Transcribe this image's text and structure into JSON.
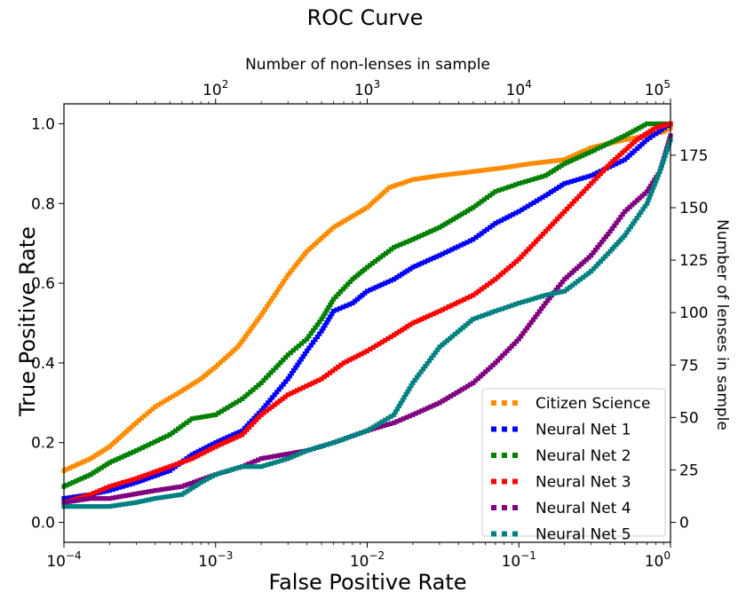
{
  "chart_data": {
    "type": "scatter",
    "title": "ROC Curve",
    "xlabel": "False Positive Rate",
    "ylabel": "True Positive Rate",
    "x2label": "Number of non-lenses in sample",
    "y2label": "Number of lenses in sample",
    "xscale": "log",
    "xlim": [
      0.0001,
      1
    ],
    "ylim": [
      -0.05,
      1.05
    ],
    "x_ticks": [
      {
        "value": 0.0001,
        "base": "10",
        "exp": "−4"
      },
      {
        "value": 0.001,
        "base": "10",
        "exp": "−3"
      },
      {
        "value": 0.01,
        "base": "10",
        "exp": "−2"
      },
      {
        "value": 0.1,
        "base": "10",
        "exp": "−1"
      },
      {
        "value": 1,
        "base": "10",
        "exp": "0"
      }
    ],
    "y_ticks": [
      "0.0",
      "0.2",
      "0.4",
      "0.6",
      "0.8",
      "1.0"
    ],
    "x2_scale_max": 100000,
    "x2_ticks": [
      {
        "value": 100,
        "base": "10",
        "exp": "2"
      },
      {
        "value": 1000,
        "base": "10",
        "exp": "3"
      },
      {
        "value": 10000,
        "base": "10",
        "exp": "4"
      },
      {
        "value": 100000,
        "base": "10",
        "exp": "5"
      }
    ],
    "y2_scale_max": 190,
    "y2_ticks": [
      "0",
      "25",
      "50",
      "75",
      "100",
      "125",
      "150",
      "175"
    ],
    "legend_position": "lower-right",
    "series": [
      {
        "name": "Citizen Science",
        "color": "#ff8c00",
        "points": [
          [
            0.0001,
            0.13
          ],
          [
            0.00015,
            0.16
          ],
          [
            0.0002,
            0.19
          ],
          [
            0.0003,
            0.25
          ],
          [
            0.0004,
            0.29
          ],
          [
            0.0006,
            0.33
          ],
          [
            0.0008,
            0.36
          ],
          [
            0.001,
            0.39
          ],
          [
            0.0014,
            0.44
          ],
          [
            0.002,
            0.52
          ],
          [
            0.003,
            0.62
          ],
          [
            0.004,
            0.68
          ],
          [
            0.006,
            0.74
          ],
          [
            0.01,
            0.79
          ],
          [
            0.014,
            0.84
          ],
          [
            0.02,
            0.86
          ],
          [
            0.03,
            0.87
          ],
          [
            0.05,
            0.88
          ],
          [
            0.08,
            0.89
          ],
          [
            0.12,
            0.9
          ],
          [
            0.2,
            0.91
          ],
          [
            0.3,
            0.94
          ],
          [
            0.5,
            0.96
          ],
          [
            0.7,
            0.97
          ],
          [
            0.9,
            0.98
          ],
          [
            1,
            0.99
          ]
        ]
      },
      {
        "name": "Neural Net 1",
        "color": "#0000ff",
        "points": [
          [
            0.0001,
            0.06
          ],
          [
            0.00015,
            0.07
          ],
          [
            0.0002,
            0.08
          ],
          [
            0.0003,
            0.1
          ],
          [
            0.0005,
            0.13
          ],
          [
            0.0007,
            0.17
          ],
          [
            0.001,
            0.2
          ],
          [
            0.0015,
            0.23
          ],
          [
            0.002,
            0.28
          ],
          [
            0.003,
            0.36
          ],
          [
            0.004,
            0.43
          ],
          [
            0.005,
            0.48
          ],
          [
            0.006,
            0.53
          ],
          [
            0.008,
            0.55
          ],
          [
            0.01,
            0.58
          ],
          [
            0.015,
            0.61
          ],
          [
            0.02,
            0.64
          ],
          [
            0.03,
            0.67
          ],
          [
            0.05,
            0.71
          ],
          [
            0.07,
            0.75
          ],
          [
            0.1,
            0.78
          ],
          [
            0.15,
            0.82
          ],
          [
            0.2,
            0.85
          ],
          [
            0.3,
            0.87
          ],
          [
            0.5,
            0.91
          ],
          [
            0.7,
            0.96
          ],
          [
            1,
            1.0
          ]
        ]
      },
      {
        "name": "Neural Net 2",
        "color": "#008000",
        "points": [
          [
            0.0001,
            0.09
          ],
          [
            0.00015,
            0.12
          ],
          [
            0.0002,
            0.15
          ],
          [
            0.0003,
            0.18
          ],
          [
            0.0005,
            0.22
          ],
          [
            0.0007,
            0.26
          ],
          [
            0.001,
            0.27
          ],
          [
            0.0015,
            0.31
          ],
          [
            0.002,
            0.35
          ],
          [
            0.003,
            0.42
          ],
          [
            0.004,
            0.46
          ],
          [
            0.005,
            0.51
          ],
          [
            0.006,
            0.56
          ],
          [
            0.008,
            0.61
          ],
          [
            0.01,
            0.64
          ],
          [
            0.015,
            0.69
          ],
          [
            0.02,
            0.71
          ],
          [
            0.03,
            0.74
          ],
          [
            0.05,
            0.79
          ],
          [
            0.07,
            0.83
          ],
          [
            0.1,
            0.85
          ],
          [
            0.15,
            0.87
          ],
          [
            0.2,
            0.9
          ],
          [
            0.3,
            0.93
          ],
          [
            0.5,
            0.97
          ],
          [
            0.7,
            1.0
          ],
          [
            1,
            1.0
          ]
        ]
      },
      {
        "name": "Neural Net 3",
        "color": "#ff0000",
        "points": [
          [
            0.0001,
            0.05
          ],
          [
            0.00015,
            0.07
          ],
          [
            0.0002,
            0.09
          ],
          [
            0.0003,
            0.11
          ],
          [
            0.0005,
            0.14
          ],
          [
            0.0007,
            0.16
          ],
          [
            0.001,
            0.19
          ],
          [
            0.0015,
            0.22
          ],
          [
            0.002,
            0.27
          ],
          [
            0.003,
            0.32
          ],
          [
            0.005,
            0.36
          ],
          [
            0.007,
            0.4
          ],
          [
            0.01,
            0.43
          ],
          [
            0.015,
            0.47
          ],
          [
            0.02,
            0.5
          ],
          [
            0.03,
            0.53
          ],
          [
            0.05,
            0.57
          ],
          [
            0.07,
            0.61
          ],
          [
            0.1,
            0.66
          ],
          [
            0.15,
            0.73
          ],
          [
            0.2,
            0.78
          ],
          [
            0.3,
            0.85
          ],
          [
            0.4,
            0.9
          ],
          [
            0.6,
            0.96
          ],
          [
            0.8,
            0.99
          ],
          [
            1,
            1.0
          ]
        ]
      },
      {
        "name": "Neural Net 4",
        "color": "#800080",
        "points": [
          [
            0.0001,
            0.05
          ],
          [
            0.00015,
            0.06
          ],
          [
            0.0002,
            0.06
          ],
          [
            0.0004,
            0.08
          ],
          [
            0.0006,
            0.09
          ],
          [
            0.001,
            0.12
          ],
          [
            0.0015,
            0.14
          ],
          [
            0.002,
            0.16
          ],
          [
            0.004,
            0.18
          ],
          [
            0.006,
            0.2
          ],
          [
            0.01,
            0.23
          ],
          [
            0.015,
            0.25
          ],
          [
            0.02,
            0.27
          ],
          [
            0.03,
            0.3
          ],
          [
            0.05,
            0.35
          ],
          [
            0.07,
            0.4
          ],
          [
            0.1,
            0.46
          ],
          [
            0.15,
            0.55
          ],
          [
            0.2,
            0.61
          ],
          [
            0.3,
            0.67
          ],
          [
            0.4,
            0.73
          ],
          [
            0.5,
            0.78
          ],
          [
            0.7,
            0.83
          ],
          [
            0.85,
            0.88
          ],
          [
            1,
            0.97
          ]
        ]
      },
      {
        "name": "Neural Net 5",
        "color": "#008080",
        "points": [
          [
            0.0001,
            0.04
          ],
          [
            0.0002,
            0.04
          ],
          [
            0.0003,
            0.05
          ],
          [
            0.0004,
            0.06
          ],
          [
            0.0006,
            0.07
          ],
          [
            0.0008,
            0.1
          ],
          [
            0.001,
            0.12
          ],
          [
            0.0015,
            0.14
          ],
          [
            0.002,
            0.14
          ],
          [
            0.003,
            0.16
          ],
          [
            0.004,
            0.18
          ],
          [
            0.006,
            0.2
          ],
          [
            0.01,
            0.23
          ],
          [
            0.015,
            0.27
          ],
          [
            0.02,
            0.35
          ],
          [
            0.03,
            0.44
          ],
          [
            0.05,
            0.51
          ],
          [
            0.07,
            0.53
          ],
          [
            0.1,
            0.55
          ],
          [
            0.15,
            0.57
          ],
          [
            0.2,
            0.58
          ],
          [
            0.3,
            0.63
          ],
          [
            0.4,
            0.68
          ],
          [
            0.5,
            0.72
          ],
          [
            0.7,
            0.8
          ],
          [
            0.85,
            0.88
          ],
          [
            1,
            0.96
          ]
        ]
      }
    ]
  }
}
